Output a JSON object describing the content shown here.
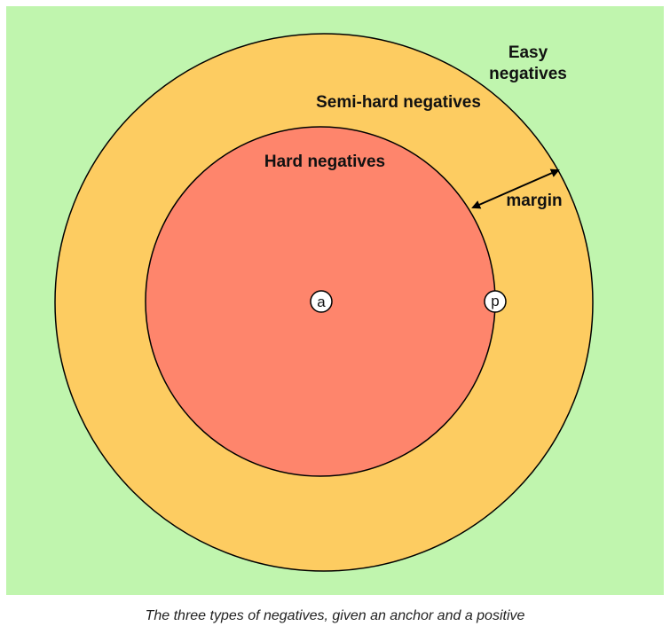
{
  "diagram": {
    "labels": {
      "easy_line1": "Easy",
      "easy_line2": "negatives",
      "semi_hard": "Semi-hard negatives",
      "hard": "Hard negatives",
      "margin": "margin"
    },
    "points": {
      "anchor": "a",
      "positive": "p"
    },
    "colors": {
      "easy_region": "#c0f5ae",
      "semi_hard_region": "#fdcc61",
      "hard_region": "#fe856c",
      "outline": "#000000",
      "point_fill": "#ffffff"
    }
  },
  "caption": "The three types of negatives, given an anchor and a positive"
}
